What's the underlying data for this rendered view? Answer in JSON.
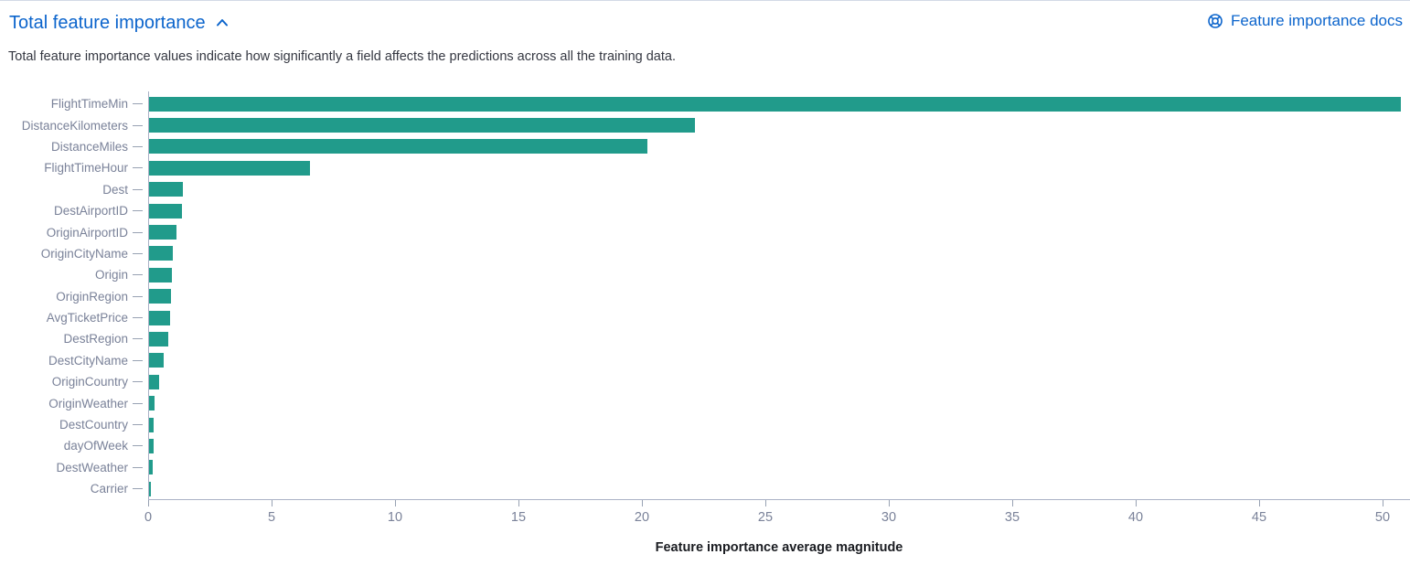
{
  "header": {
    "title": "Total feature importance",
    "collapse_icon": "chevron-up",
    "docs_link_label": "Feature importance docs",
    "docs_icon": "life-ring"
  },
  "description": "Total feature importance values indicate how significantly a field affects the predictions across all the training data.",
  "colors": {
    "link_blue": "#0b64cc",
    "bar_teal": "#219b8b",
    "axis_line": "#aab2c6",
    "tick_mark": "#98a2b3",
    "label_gray": "#7a8299",
    "body_text": "#343741",
    "axis_title_text": "#1a1c21"
  },
  "chart_data": {
    "type": "bar",
    "orientation": "horizontal",
    "title": "",
    "xlabel": "Feature importance average magnitude",
    "ylabel": "",
    "categories": [
      "FlightTimeMin",
      "DistanceKilometers",
      "DistanceMiles",
      "FlightTimeHour",
      "Dest",
      "DestAirportID",
      "OriginAirportID",
      "OriginCityName",
      "Origin",
      "OriginRegion",
      "AvgTicketPrice",
      "DestRegion",
      "DestCityName",
      "OriginCountry",
      "OriginWeather",
      "DestCountry",
      "dayOfWeek",
      "DestWeather",
      "Carrier"
    ],
    "values": [
      50.7,
      22.1,
      20.2,
      6.5,
      1.37,
      1.33,
      1.11,
      0.96,
      0.94,
      0.89,
      0.86,
      0.76,
      0.61,
      0.42,
      0.21,
      0.19,
      0.17,
      0.15,
      0.07
    ],
    "x_ticks": [
      0,
      5,
      10,
      15,
      20,
      25,
      30,
      35,
      40,
      45,
      50
    ],
    "xlim": [
      0,
      51.1
    ],
    "grid": false,
    "legend": false,
    "bar_color": "#219b8b"
  }
}
